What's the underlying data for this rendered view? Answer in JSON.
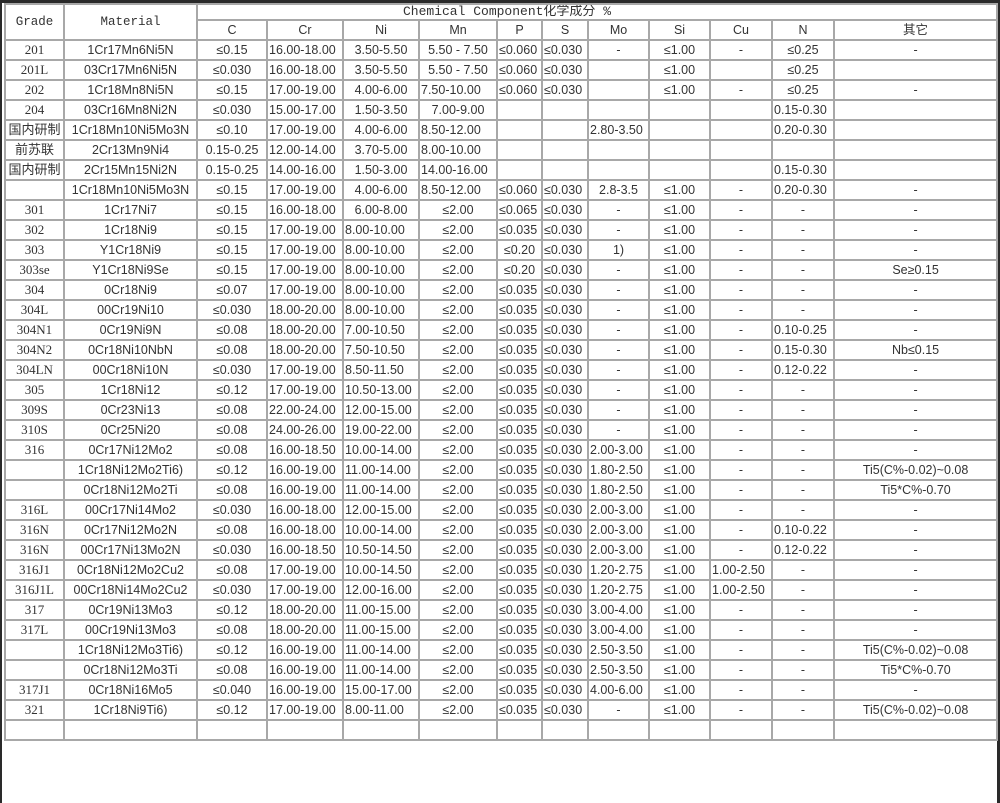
{
  "header": {
    "grade": "Grade",
    "material": "Material",
    "group_title": "Chemical Component化学成分 %",
    "elements": [
      "C",
      "Cr",
      "Ni",
      "Mn",
      "P",
      "S",
      "Mo",
      "Si",
      "Cu",
      "N",
      "其它"
    ]
  },
  "rows": [
    [
      "201",
      "1Cr17Mn6Ni5N",
      "≤0.15",
      "16.00-18.00",
      "3.50-5.50",
      "5.50 - 7.50",
      "≤0.060",
      "≤0.030",
      "-",
      "≤1.00",
      "-",
      "≤0.25",
      "-"
    ],
    [
      "201L",
      "03Cr17Mn6Ni5N",
      "≤0.030",
      "16.00-18.00",
      "3.50-5.50",
      "5.50 - 7.50",
      "≤0.060",
      "≤0.030",
      "",
      "≤1.00",
      "",
      "≤0.25",
      ""
    ],
    [
      "202",
      "1Cr18Mn8Ni5N",
      "≤0.15",
      "17.00-19.00",
      "4.00-6.00",
      "7.50-10.00",
      "≤0.060",
      "≤0.030",
      "",
      "≤1.00",
      "-",
      "≤0.25",
      "-"
    ],
    [
      "204",
      "03Cr16Mn8Ni2N",
      "≤0.030",
      "15.00-17.00",
      "1.50-3.50",
      "7.00-9.00",
      "",
      "",
      "",
      "",
      "",
      "0.15-0.30",
      ""
    ],
    [
      "国内研制",
      "1Cr18Mn10Ni5Mo3N",
      "≤0.10",
      "17.00-19.00",
      "4.00-6.00",
      "8.50-12.00",
      "",
      "",
      "2.80-3.50",
      "",
      "",
      "0.20-0.30",
      ""
    ],
    [
      "前苏联",
      "2Cr13Mn9Ni4",
      "0.15-0.25",
      "12.00-14.00",
      "3.70-5.00",
      "8.00-10.00",
      "",
      "",
      "",
      "",
      "",
      "",
      ""
    ],
    [
      "国内研制",
      "2Cr15Mn15Ni2N",
      "0.15-0.25",
      "14.00-16.00",
      "1.50-3.00",
      "14.00-16.00",
      "",
      "",
      "",
      "",
      "",
      "0.15-0.30",
      ""
    ],
    [
      "",
      "1Cr18Mn10Ni5Mo3N",
      "≤0.15",
      "17.00-19.00",
      "4.00-6.00",
      "8.50-12.00",
      "≤0.060",
      "≤0.030",
      "2.8-3.5",
      "≤1.00",
      "-",
      "0.20-0.30",
      "-"
    ],
    [
      "301",
      "1Cr17Ni7",
      "≤0.15",
      "16.00-18.00",
      "6.00-8.00",
      "≤2.00",
      "≤0.065",
      "≤0.030",
      "-",
      "≤1.00",
      "-",
      "-",
      "-"
    ],
    [
      "302",
      "1Cr18Ni9",
      "≤0.15",
      "17.00-19.00",
      "8.00-10.00",
      "≤2.00",
      "≤0.035",
      "≤0.030",
      "-",
      "≤1.00",
      "-",
      "-",
      "-"
    ],
    [
      "303",
      "Y1Cr18Ni9",
      "≤0.15",
      "17.00-19.00",
      "8.00-10.00",
      "≤2.00",
      "≤0.20",
      "≤0.030",
      "1)",
      "≤1.00",
      "-",
      "-",
      "-"
    ],
    [
      "303se",
      "Y1Cr18Ni9Se",
      "≤0.15",
      "17.00-19.00",
      "8.00-10.00",
      "≤2.00",
      "≤0.20",
      "≤0.030",
      "-",
      "≤1.00",
      "-",
      "-",
      "Se≥0.15"
    ],
    [
      "304",
      "0Cr18Ni9",
      "≤0.07",
      "17.00-19.00",
      "8.00-10.00",
      "≤2.00",
      "≤0.035",
      "≤0.030",
      "-",
      "≤1.00",
      "-",
      "-",
      "-"
    ],
    [
      "304L",
      "00Cr19Ni10",
      "≤0.030",
      "18.00-20.00",
      "8.00-10.00",
      "≤2.00",
      "≤0.035",
      "≤0.030",
      "-",
      "≤1.00",
      "-",
      "-",
      "-"
    ],
    [
      "304N1",
      "0Cr19Ni9N",
      "≤0.08",
      "18.00-20.00",
      "7.00-10.50",
      "≤2.00",
      "≤0.035",
      "≤0.030",
      "-",
      "≤1.00",
      "-",
      "0.10-0.25",
      "-"
    ],
    [
      "304N2",
      "0Cr18Ni10NbN",
      "≤0.08",
      "18.00-20.00",
      "7.50-10.50",
      "≤2.00",
      "≤0.035",
      "≤0.030",
      "-",
      "≤1.00",
      "-",
      "0.15-0.30",
      "Nb≤0.15"
    ],
    [
      "304LN",
      "00Cr18Ni10N",
      "≤0.030",
      "17.00-19.00",
      "8.50-11.50",
      "≤2.00",
      "≤0.035",
      "≤0.030",
      "-",
      "≤1.00",
      "-",
      "0.12-0.22",
      "-"
    ],
    [
      "305",
      "1Cr18Ni12",
      "≤0.12",
      "17.00-19.00",
      "10.50-13.00",
      "≤2.00",
      "≤0.035",
      "≤0.030",
      "-",
      "≤1.00",
      "-",
      "-",
      "-"
    ],
    [
      "309S",
      "0Cr23Ni13",
      "≤0.08",
      "22.00-24.00",
      "12.00-15.00",
      "≤2.00",
      "≤0.035",
      "≤0.030",
      "-",
      "≤1.00",
      "-",
      "-",
      "-"
    ],
    [
      "310S",
      "0Cr25Ni20",
      "≤0.08",
      "24.00-26.00",
      "19.00-22.00",
      "≤2.00",
      "≤0.035",
      "≤0.030",
      "-",
      "≤1.00",
      "-",
      "-",
      "-"
    ],
    [
      "316",
      "0Cr17Ni12Mo2",
      "≤0.08",
      "16.00-18.50",
      "10.00-14.00",
      "≤2.00",
      "≤0.035",
      "≤0.030",
      "2.00-3.00",
      "≤1.00",
      "-",
      "-",
      "-"
    ],
    [
      "",
      "1Cr18Ni12Mo2Ti6)",
      "≤0.12",
      "16.00-19.00",
      "11.00-14.00",
      "≤2.00",
      "≤0.035",
      "≤0.030",
      "1.80-2.50",
      "≤1.00",
      "-",
      "-",
      "Ti5(C%-0.02)~0.08"
    ],
    [
      "",
      "0Cr18Ni12Mo2Ti",
      "≤0.08",
      "16.00-19.00",
      "11.00-14.00",
      "≤2.00",
      "≤0.035",
      "≤0.030",
      "1.80-2.50",
      "≤1.00",
      "-",
      "-",
      "Ti5*C%-0.70"
    ],
    [
      "316L",
      "00Cr17Ni14Mo2",
      "≤0.030",
      "16.00-18.00",
      "12.00-15.00",
      "≤2.00",
      "≤0.035",
      "≤0.030",
      "2.00-3.00",
      "≤1.00",
      "-",
      "-",
      "-"
    ],
    [
      "316N",
      "0Cr17Ni12Mo2N",
      "≤0.08",
      "16.00-18.00",
      "10.00-14.00",
      "≤2.00",
      "≤0.035",
      "≤0.030",
      "2.00-3.00",
      "≤1.00",
      "-",
      "0.10-0.22",
      "-"
    ],
    [
      "316N",
      "00Cr17Ni13Mo2N",
      "≤0.030",
      "16.00-18.50",
      "10.50-14.50",
      "≤2.00",
      "≤0.035",
      "≤0.030",
      "2.00-3.00",
      "≤1.00",
      "-",
      "0.12-0.22",
      "-"
    ],
    [
      "316J1",
      "0Cr18Ni12Mo2Cu2",
      "≤0.08",
      "17.00-19.00",
      "10.00-14.50",
      "≤2.00",
      "≤0.035",
      "≤0.030",
      "1.20-2.75",
      "≤1.00",
      "1.00-2.50",
      "-",
      "-"
    ],
    [
      "316J1L",
      "00Cr18Ni14Mo2Cu2",
      "≤0.030",
      "17.00-19.00",
      "12.00-16.00",
      "≤2.00",
      "≤0.035",
      "≤0.030",
      "1.20-2.75",
      "≤1.00",
      "1.00-2.50",
      "-",
      "-"
    ],
    [
      "317",
      "0Cr19Ni13Mo3",
      "≤0.12",
      "18.00-20.00",
      "11.00-15.00",
      "≤2.00",
      "≤0.035",
      "≤0.030",
      "3.00-4.00",
      "≤1.00",
      "-",
      "-",
      "-"
    ],
    [
      "317L",
      "00Cr19Ni13Mo3",
      "≤0.08",
      "18.00-20.00",
      "11.00-15.00",
      "≤2.00",
      "≤0.035",
      "≤0.030",
      "3.00-4.00",
      "≤1.00",
      "-",
      "-",
      "-"
    ],
    [
      "",
      "1Cr18Ni12Mo3Ti6)",
      "≤0.12",
      "16.00-19.00",
      "11.00-14.00",
      "≤2.00",
      "≤0.035",
      "≤0.030",
      "2.50-3.50",
      "≤1.00",
      "-",
      "-",
      "Ti5(C%-0.02)~0.08"
    ],
    [
      "",
      "0Cr18Ni12Mo3Ti",
      "≤0.08",
      "16.00-19.00",
      "11.00-14.00",
      "≤2.00",
      "≤0.035",
      "≤0.030",
      "2.50-3.50",
      "≤1.00",
      "-",
      "-",
      "Ti5*C%-0.70"
    ],
    [
      "317J1",
      "0Cr18Ni16Mo5",
      "≤0.040",
      "16.00-19.00",
      "15.00-17.00",
      "≤2.00",
      "≤0.035",
      "≤0.030",
      "4.00-6.00",
      "≤1.00",
      "-",
      "-",
      "-"
    ],
    [
      "321",
      "1Cr18Ni9Ti6)",
      "≤0.12",
      "17.00-19.00",
      "8.00-11.00",
      "≤2.00",
      "≤0.035",
      "≤0.030",
      "-",
      "≤1.00",
      "-",
      "-",
      "Ti5(C%-0.02)~0.08"
    ],
    [
      "",
      "",
      "",
      "",
      "",
      "",
      "",
      "",
      "",
      "",
      "",
      "",
      ""
    ]
  ]
}
